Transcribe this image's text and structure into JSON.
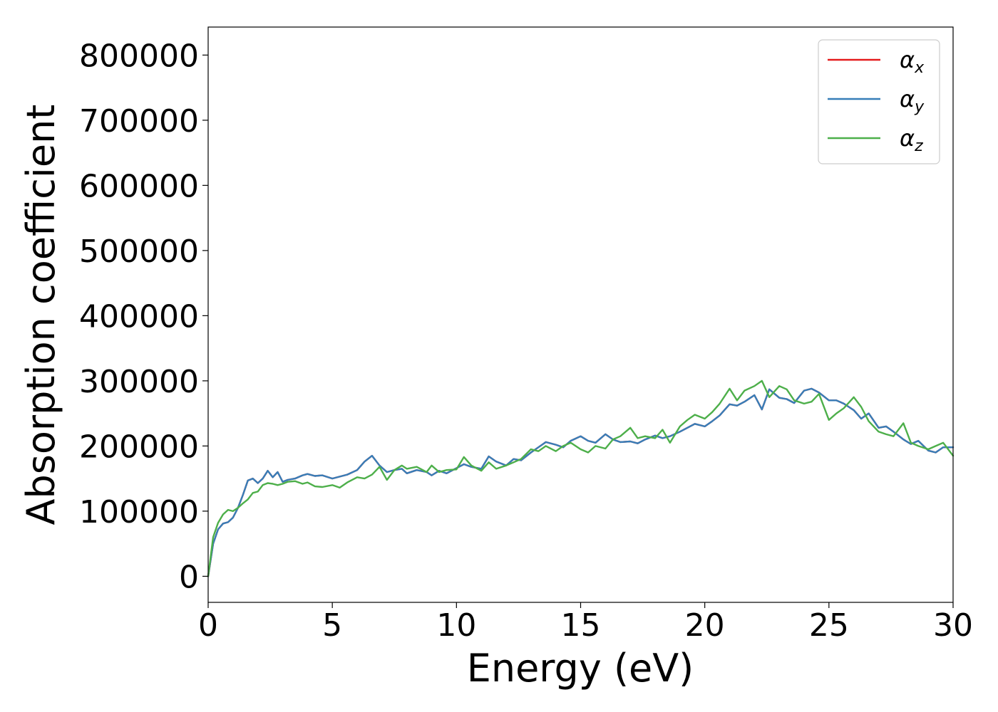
{
  "chart_data": {
    "type": "line",
    "title": "",
    "xlabel": "Energy (eV)",
    "ylabel": "Absorption coefficient",
    "xlim": [
      0,
      30
    ],
    "ylim": [
      -40000,
      843000
    ],
    "xticks": [
      0,
      5,
      10,
      15,
      20,
      25,
      30
    ],
    "xtick_labels": [
      "0",
      "5",
      "10",
      "15",
      "20",
      "25",
      "30"
    ],
    "yticks": [
      0,
      100000,
      200000,
      300000,
      400000,
      500000,
      600000,
      700000,
      800000
    ],
    "ytick_labels": [
      "0",
      "100000",
      "200000",
      "300000",
      "400000",
      "500000",
      "600000",
      "700000",
      "800000"
    ],
    "grid": false,
    "legend_position": "top-right",
    "series": [
      {
        "name": "αx",
        "legend_base": "α",
        "legend_sub": "x",
        "color": "#e41a1c",
        "x": [
          0,
          0.1,
          0.2,
          0.4,
          0.6,
          0.8,
          1.0,
          1.2,
          1.4,
          1.6,
          1.8,
          2.0,
          2.2,
          2.4,
          2.6,
          2.8,
          3.0,
          3.2,
          3.5,
          3.8,
          4.0,
          4.3,
          4.6,
          5.0,
          5.3,
          5.6,
          6.0,
          6.3,
          6.6,
          6.9,
          7.2,
          7.5,
          7.8,
          8.0,
          8.4,
          8.8,
          9.0,
          9.3,
          9.6,
          10.0,
          10.3,
          10.6,
          11.0,
          11.3,
          11.6,
          12.0,
          12.3,
          12.6,
          13.0,
          13.3,
          13.6,
          14.0,
          14.3,
          14.6,
          15.0,
          15.3,
          15.6,
          16.0,
          16.3,
          16.6,
          17.0,
          17.3,
          17.6,
          18.0,
          18.3,
          18.6,
          19.0,
          19.3,
          19.6,
          20.0,
          20.3,
          20.6,
          21.0,
          21.3,
          21.6,
          22.0,
          22.3,
          22.6,
          23.0,
          23.3,
          23.6,
          24.0,
          24.3,
          24.6,
          25.0,
          25.3,
          25.6,
          26.0,
          26.3,
          26.6,
          27.0,
          27.3,
          27.6,
          28.0,
          28.3,
          28.6,
          29.0,
          29.3,
          29.6,
          30.0
        ],
        "y": [
          0,
          25000,
          50000,
          72000,
          81000,
          83000,
          90000,
          105000,
          125000,
          147000,
          150000,
          143000,
          150000,
          162000,
          152000,
          160000,
          145000,
          148000,
          150000,
          155000,
          157000,
          154000,
          155000,
          150000,
          153000,
          156000,
          163000,
          176000,
          185000,
          170000,
          160000,
          163000,
          165000,
          158000,
          163000,
          160000,
          155000,
          162000,
          158000,
          166000,
          172000,
          168000,
          165000,
          184000,
          176000,
          170000,
          180000,
          178000,
          190000,
          198000,
          206000,
          202000,
          198000,
          208000,
          215000,
          208000,
          205000,
          218000,
          210000,
          206000,
          207000,
          204000,
          210000,
          216000,
          212000,
          215000,
          222000,
          228000,
          234000,
          230000,
          238000,
          247000,
          264000,
          262000,
          268000,
          278000,
          256000,
          287000,
          274000,
          272000,
          266000,
          285000,
          288000,
          282000,
          270000,
          270000,
          265000,
          255000,
          242000,
          250000,
          228000,
          230000,
          222000,
          210000,
          203000,
          208000,
          193000,
          190000,
          198000,
          198000
        ]
      },
      {
        "name": "αy",
        "legend_base": "α",
        "legend_sub": "y",
        "color": "#377eb8",
        "x": [
          0,
          0.1,
          0.2,
          0.4,
          0.6,
          0.8,
          1.0,
          1.2,
          1.4,
          1.6,
          1.8,
          2.0,
          2.2,
          2.4,
          2.6,
          2.8,
          3.0,
          3.2,
          3.5,
          3.8,
          4.0,
          4.3,
          4.6,
          5.0,
          5.3,
          5.6,
          6.0,
          6.3,
          6.6,
          6.9,
          7.2,
          7.5,
          7.8,
          8.0,
          8.4,
          8.8,
          9.0,
          9.3,
          9.6,
          10.0,
          10.3,
          10.6,
          11.0,
          11.3,
          11.6,
          12.0,
          12.3,
          12.6,
          13.0,
          13.3,
          13.6,
          14.0,
          14.3,
          14.6,
          15.0,
          15.3,
          15.6,
          16.0,
          16.3,
          16.6,
          17.0,
          17.3,
          17.6,
          18.0,
          18.3,
          18.6,
          19.0,
          19.3,
          19.6,
          20.0,
          20.3,
          20.6,
          21.0,
          21.3,
          21.6,
          22.0,
          22.3,
          22.6,
          23.0,
          23.3,
          23.6,
          24.0,
          24.3,
          24.6,
          25.0,
          25.3,
          25.6,
          26.0,
          26.3,
          26.6,
          27.0,
          27.3,
          27.6,
          28.0,
          28.3,
          28.6,
          29.0,
          29.3,
          29.6,
          30.0
        ],
        "y": [
          0,
          25000,
          50000,
          72000,
          81000,
          83000,
          90000,
          105000,
          125000,
          147000,
          150000,
          143000,
          150000,
          162000,
          152000,
          160000,
          145000,
          148000,
          150000,
          155000,
          157000,
          154000,
          155000,
          150000,
          153000,
          156000,
          163000,
          176000,
          185000,
          170000,
          160000,
          163000,
          165000,
          158000,
          163000,
          160000,
          155000,
          162000,
          158000,
          166000,
          172000,
          168000,
          165000,
          184000,
          176000,
          170000,
          180000,
          178000,
          190000,
          198000,
          206000,
          202000,
          198000,
          208000,
          215000,
          208000,
          205000,
          218000,
          210000,
          206000,
          207000,
          204000,
          210000,
          216000,
          212000,
          215000,
          222000,
          228000,
          234000,
          230000,
          238000,
          247000,
          264000,
          262000,
          268000,
          278000,
          256000,
          287000,
          274000,
          272000,
          266000,
          285000,
          288000,
          282000,
          270000,
          270000,
          265000,
          255000,
          242000,
          250000,
          228000,
          230000,
          222000,
          210000,
          203000,
          208000,
          193000,
          190000,
          198000,
          198000
        ]
      },
      {
        "name": "αz",
        "legend_base": "α",
        "legend_sub": "z",
        "color": "#4daf4a",
        "x": [
          0,
          0.1,
          0.2,
          0.4,
          0.6,
          0.8,
          1.0,
          1.2,
          1.4,
          1.6,
          1.8,
          2.0,
          2.2,
          2.4,
          2.6,
          2.8,
          3.0,
          3.2,
          3.5,
          3.8,
          4.0,
          4.3,
          4.6,
          5.0,
          5.3,
          5.6,
          6.0,
          6.3,
          6.6,
          6.9,
          7.2,
          7.5,
          7.8,
          8.0,
          8.4,
          8.8,
          9.0,
          9.3,
          9.6,
          10.0,
          10.3,
          10.6,
          11.0,
          11.3,
          11.6,
          12.0,
          12.3,
          12.6,
          13.0,
          13.3,
          13.6,
          14.0,
          14.3,
          14.6,
          15.0,
          15.3,
          15.6,
          16.0,
          16.3,
          16.6,
          17.0,
          17.3,
          17.6,
          18.0,
          18.3,
          18.6,
          19.0,
          19.3,
          19.6,
          20.0,
          20.3,
          20.6,
          21.0,
          21.3,
          21.6,
          22.0,
          22.3,
          22.6,
          23.0,
          23.3,
          23.6,
          24.0,
          24.3,
          24.6,
          25.0,
          25.3,
          25.6,
          26.0,
          26.3,
          26.6,
          27.0,
          27.3,
          27.6,
          28.0,
          28.3,
          28.6,
          29.0,
          29.3,
          29.6,
          30.0
        ],
        "y": [
          0,
          30000,
          60000,
          82000,
          95000,
          102000,
          100000,
          105000,
          112000,
          118000,
          128000,
          130000,
          140000,
          143000,
          142000,
          140000,
          142000,
          145000,
          146000,
          142000,
          144000,
          138000,
          137000,
          140000,
          136000,
          144000,
          152000,
          150000,
          156000,
          168000,
          148000,
          163000,
          170000,
          165000,
          168000,
          160000,
          170000,
          160000,
          163000,
          164000,
          183000,
          170000,
          162000,
          175000,
          165000,
          170000,
          175000,
          180000,
          195000,
          192000,
          200000,
          192000,
          200000,
          205000,
          195000,
          190000,
          200000,
          196000,
          210000,
          215000,
          228000,
          212000,
          215000,
          212000,
          225000,
          205000,
          230000,
          240000,
          248000,
          242000,
          252000,
          265000,
          288000,
          270000,
          285000,
          292000,
          300000,
          275000,
          292000,
          287000,
          270000,
          265000,
          268000,
          280000,
          240000,
          250000,
          258000,
          275000,
          260000,
          238000,
          222000,
          218000,
          215000,
          235000,
          205000,
          200000,
          195000,
          200000,
          205000,
          185000
        ]
      }
    ]
  }
}
